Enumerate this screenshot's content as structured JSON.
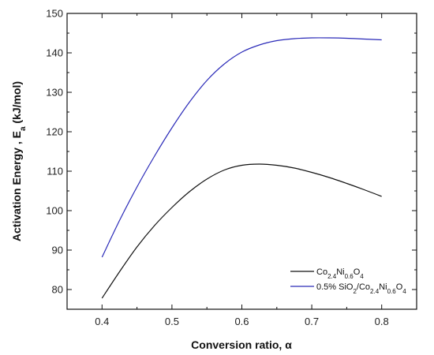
{
  "chart_data": {
    "type": "line",
    "xlabel": "Conversion ratio, α",
    "ylabel": "Activation Energy , E",
    "ylabel_sub": "a",
    "ylabel_unit": " (kJ/mol)",
    "xlim": [
      0.35,
      0.85
    ],
    "ylim": [
      75,
      150
    ],
    "xticks": [
      0.4,
      0.5,
      0.6,
      0.7,
      0.8
    ],
    "yticks": [
      80,
      90,
      100,
      110,
      120,
      130,
      140,
      150
    ],
    "grid": false,
    "legend_position": "bottom-right",
    "series": [
      {
        "legend": [
          {
            "text": "Co",
            "sub": false
          },
          {
            "text": "2.4",
            "sub": true
          },
          {
            "text": "Ni",
            "sub": false
          },
          {
            "text": "0.6",
            "sub": true
          },
          {
            "text": "O",
            "sub": false
          },
          {
            "text": "4",
            "sub": true
          }
        ],
        "color": "#111111",
        "x": [
          0.4,
          0.425,
          0.45,
          0.475,
          0.5,
          0.525,
          0.55,
          0.575,
          0.6,
          0.625,
          0.65,
          0.675,
          0.7,
          0.725,
          0.75,
          0.775,
          0.8
        ],
        "y": [
          77.8,
          84.5,
          90.8,
          96.2,
          100.8,
          104.8,
          108.0,
          110.3,
          111.5,
          111.8,
          111.5,
          110.8,
          109.7,
          108.4,
          106.9,
          105.3,
          103.6
        ]
      },
      {
        "legend": [
          {
            "text": "0.5% SiO",
            "sub": false
          },
          {
            "text": "2",
            "sub": true
          },
          {
            "text": "/Co",
            "sub": false
          },
          {
            "text": "2.4",
            "sub": true
          },
          {
            "text": "Ni",
            "sub": false
          },
          {
            "text": "0.6",
            "sub": true
          },
          {
            "text": "O",
            "sub": false
          },
          {
            "text": "4",
            "sub": true
          }
        ],
        "color": "#2a2ab8",
        "x": [
          0.4,
          0.425,
          0.45,
          0.475,
          0.5,
          0.525,
          0.55,
          0.575,
          0.6,
          0.625,
          0.65,
          0.675,
          0.7,
          0.725,
          0.75,
          0.775,
          0.8
        ],
        "y": [
          88.2,
          97.5,
          106.0,
          113.8,
          121.0,
          127.5,
          133.0,
          137.2,
          140.2,
          142.0,
          143.1,
          143.6,
          143.8,
          143.8,
          143.7,
          143.5,
          143.3
        ]
      }
    ]
  }
}
